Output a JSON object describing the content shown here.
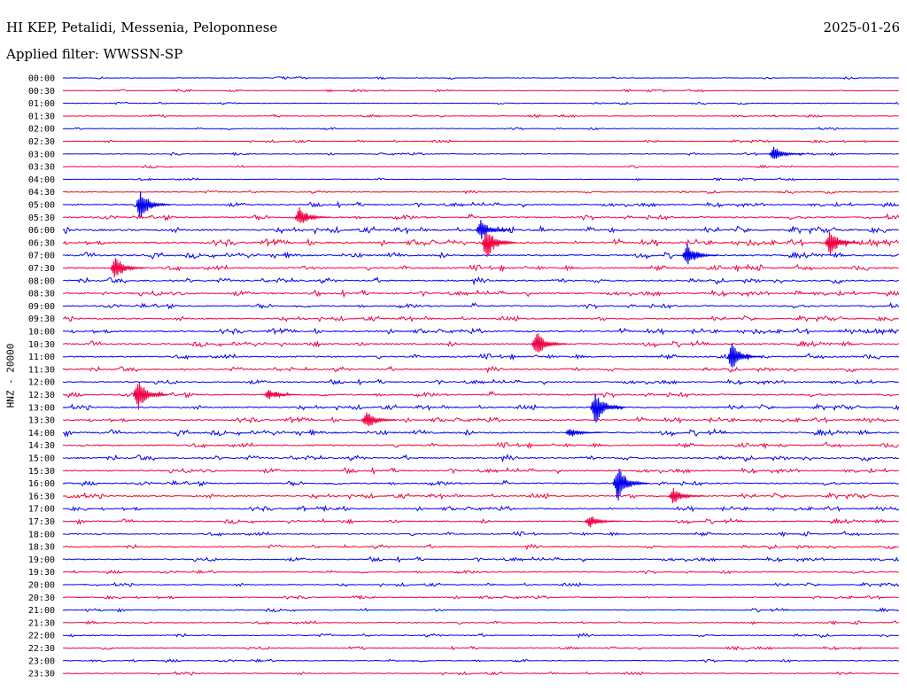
{
  "header": {
    "station": "HI KEP, Petalidi, Messenia, Peloponnese",
    "date": "2025-01-26",
    "filter_label": "Applied filter: WWSSN-SP"
  },
  "chart_data": {
    "type": "line",
    "ylabel": "HNZ - 20000",
    "y_ticks": [
      "00:00",
      "00:30",
      "01:00",
      "01:30",
      "02:00",
      "02:30",
      "03:00",
      "03:30",
      "04:00",
      "04:30",
      "05:00",
      "05:30",
      "06:00",
      "06:30",
      "07:00",
      "07:30",
      "08:00",
      "08:30",
      "09:00",
      "09:30",
      "10:00",
      "10:30",
      "11:00",
      "11:30",
      "12:00",
      "12:30",
      "13:00",
      "13:30",
      "14:00",
      "14:30",
      "15:00",
      "15:30",
      "16:00",
      "16:30",
      "17:00",
      "17:30",
      "18:00",
      "18:30",
      "19:00",
      "19:30",
      "20:00",
      "20:30",
      "21:00",
      "21:30",
      "22:00",
      "22:30",
      "23:00",
      "23:30"
    ],
    "x_minutes": [
      0,
      30
    ],
    "trace_colors": [
      "#0000ee",
      "#ee0044"
    ],
    "activity": [
      0.05,
      0.05,
      0.05,
      0.08,
      0.04,
      0.1,
      0.12,
      0.08,
      0.1,
      0.2,
      0.5,
      0.7,
      0.9,
      0.9,
      0.8,
      0.8,
      0.75,
      0.7,
      0.6,
      0.6,
      0.65,
      0.7,
      0.7,
      0.6,
      0.5,
      0.7,
      0.6,
      0.6,
      0.8,
      0.7,
      0.7,
      0.6,
      0.6,
      0.6,
      0.5,
      0.5,
      0.5,
      0.45,
      0.45,
      0.3,
      0.3,
      0.25,
      0.25,
      0.3,
      0.3,
      0.2,
      0.2,
      0.2
    ],
    "events": [
      {
        "row": 6,
        "minute": 25.5,
        "amplitude": 9
      },
      {
        "row": 10,
        "minute": 2.8,
        "amplitude": 18
      },
      {
        "row": 11,
        "minute": 8.5,
        "amplitude": 12
      },
      {
        "row": 12,
        "minute": 15.0,
        "amplitude": 12
      },
      {
        "row": 13,
        "minute": 15.2,
        "amplitude": 20
      },
      {
        "row": 13,
        "minute": 27.5,
        "amplitude": 16
      },
      {
        "row": 14,
        "minute": 22.4,
        "amplitude": 14
      },
      {
        "row": 15,
        "minute": 1.9,
        "amplitude": 14
      },
      {
        "row": 21,
        "minute": 17.0,
        "amplitude": 16
      },
      {
        "row": 22,
        "minute": 24.0,
        "amplitude": 16
      },
      {
        "row": 25,
        "minute": 2.7,
        "amplitude": 20
      },
      {
        "row": 25,
        "minute": 7.4,
        "amplitude": 6
      },
      {
        "row": 26,
        "minute": 19.1,
        "amplitude": 20
      },
      {
        "row": 27,
        "minute": 10.9,
        "amplitude": 12
      },
      {
        "row": 28,
        "minute": 18.2,
        "amplitude": 6
      },
      {
        "row": 32,
        "minute": 19.9,
        "amplitude": 22
      },
      {
        "row": 33,
        "minute": 21.9,
        "amplitude": 10
      },
      {
        "row": 35,
        "minute": 18.9,
        "amplitude": 8
      }
    ]
  }
}
